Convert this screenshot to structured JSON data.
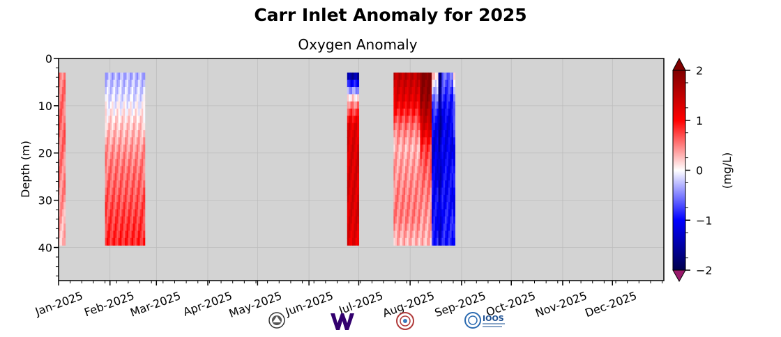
{
  "chart_data": {
    "type": "heatmap",
    "title": "Carr Inlet Anomaly for 2025",
    "subtitle": "Oxygen Anomaly",
    "ylabel": "Depth (m)",
    "colorbar_label": "(mg/L)",
    "x_ticks": [
      "Jan-2025",
      "Feb-2025",
      "Mar-2025",
      "Apr-2025",
      "May-2025",
      "Jun-2025",
      "Jul-2025",
      "Aug-2025",
      "Sep-2025",
      "Oct-2025",
      "Nov-2025",
      "Dec-2025"
    ],
    "y_ticks": [
      0,
      10,
      20,
      30,
      40
    ],
    "colorbar_ticks": [
      "2",
      "1",
      "0",
      "−1",
      "−2"
    ],
    "xlim_days": [
      0,
      365
    ],
    "ylim": [
      47,
      0
    ],
    "clim": [
      -2,
      2
    ],
    "depth_range": [
      3,
      39.5
    ],
    "background_color": "#d3d3d3",
    "colormap": "seismic",
    "blocks": [
      {
        "start_day": 0,
        "end_day": 4,
        "profile": [
          0.5,
          0.55,
          0.6,
          0.55,
          0.5,
          0.45,
          0.35,
          0.25
        ],
        "note": ""
      },
      {
        "start_day": 28,
        "end_day": 52,
        "profile": [
          -0.3,
          -0.1,
          0.2,
          0.4,
          0.55,
          0.65,
          0.75,
          0.85
        ]
      },
      {
        "start_day": 174,
        "end_day": 181,
        "profile": [
          -1.5,
          0.3,
          1.2,
          1.3,
          1.3,
          1.3,
          1.3,
          1.2
        ]
      },
      {
        "start_day": 202,
        "end_day": 218,
        "profile": [
          1.5,
          1.2,
          0.6,
          0.3,
          0.4,
          0.5,
          0.5,
          0.3
        ]
      },
      {
        "start_day": 218,
        "end_day": 225,
        "profile": [
          2.0,
          1.8,
          1.4,
          0.8,
          0.6,
          0.5,
          0.4,
          0.3
        ]
      },
      {
        "start_day": 225,
        "end_day": 229,
        "profile": [
          0.2,
          -0.6,
          -1.0,
          -1.2,
          -1.1,
          -1.0,
          -1.0,
          -0.9
        ]
      },
      {
        "start_day": 229,
        "end_day": 231,
        "profile": [
          -1.6,
          -1.6,
          -1.5,
          -1.4,
          -1.3,
          -1.3,
          -1.2,
          -1.2
        ]
      },
      {
        "start_day": 231,
        "end_day": 238,
        "profile": [
          -0.6,
          -0.9,
          -1.1,
          -1.1,
          -1.0,
          -1.0,
          -0.9,
          -0.9
        ]
      },
      {
        "start_day": 238,
        "end_day": 239,
        "profile": [
          0.0,
          -0.4,
          -0.8,
          -1.0,
          -1.0,
          -1.0,
          -1.0,
          -1.0
        ]
      }
    ],
    "grid": true
  },
  "logos": [
    {
      "name": "ecology-seal"
    },
    {
      "name": "uw-logo",
      "text": "W"
    },
    {
      "name": "tribal-seal"
    },
    {
      "name": "ioos-logo",
      "text": "IOOS"
    }
  ]
}
